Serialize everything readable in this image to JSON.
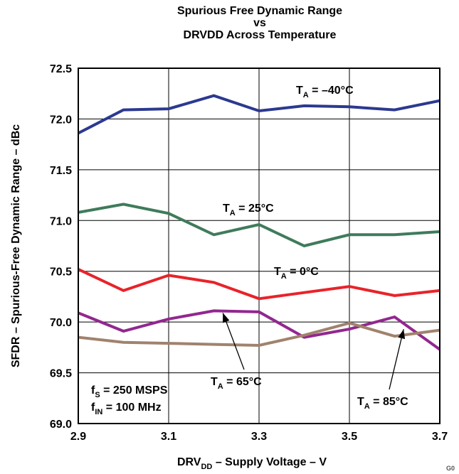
{
  "chart_data": {
    "type": "line",
    "title": [
      "Spurious Free Dynamic Range",
      "vs",
      "DRVDD Across Temperature"
    ],
    "xlabel": {
      "pre": "DRV",
      "sub": "DD",
      "post": " – Supply Voltage – V"
    },
    "ylabel": "SFDR – Spurious-Free Dynamic Range – dBc",
    "xlim": [
      2.9,
      3.7
    ],
    "ylim": [
      69.0,
      72.5
    ],
    "xticks": [
      "2.9",
      "3.1",
      "3.3",
      "3.5",
      "3.7"
    ],
    "xticks_values": [
      2.9,
      3.1,
      3.3,
      3.5,
      3.7
    ],
    "yticks": [
      "69.0",
      "69.5",
      "70.0",
      "70.5",
      "71.0",
      "71.5",
      "72.0",
      "72.5"
    ],
    "yticks_values": [
      69.0,
      69.5,
      70.0,
      70.5,
      71.0,
      71.5,
      72.0,
      72.5
    ],
    "grid": true,
    "x": [
      2.9,
      3.0,
      3.1,
      3.2,
      3.3,
      3.4,
      3.5,
      3.6,
      3.7
    ],
    "series": [
      {
        "name": {
          "pre": "T",
          "sub": "A",
          "post": " = –40°C"
        },
        "color": "#2b3990",
        "values": [
          71.86,
          72.09,
          72.1,
          72.23,
          72.08,
          72.13,
          72.12,
          72.09,
          72.18
        ]
      },
      {
        "name": {
          "pre": "T",
          "sub": "A",
          "post": " = 25°C"
        },
        "color": "#3f7b5b",
        "values": [
          71.08,
          71.16,
          71.07,
          70.86,
          70.96,
          70.75,
          70.86,
          70.86,
          70.89
        ]
      },
      {
        "name": {
          "pre": "T",
          "sub": "A",
          "post": " = 0°C"
        },
        "color": "#e8232a",
        "values": [
          70.52,
          70.31,
          70.46,
          70.39,
          70.23,
          70.29,
          70.35,
          70.26,
          70.31
        ]
      },
      {
        "name": {
          "pre": "T",
          "sub": "A",
          "post": " = 65°C"
        },
        "color": "#92278f",
        "values": [
          70.09,
          69.91,
          70.03,
          70.11,
          70.1,
          69.85,
          69.93,
          70.05,
          69.73
        ]
      },
      {
        "name": {
          "pre": "T",
          "sub": "A",
          "post": " = 85°C"
        },
        "color": "#a0826d",
        "values": [
          69.85,
          69.8,
          69.79,
          69.78,
          69.77,
          69.87,
          69.99,
          69.86,
          69.92
        ]
      }
    ],
    "annotations": [
      {
        "pre": "f",
        "sub": "S",
        "post": " = 250 MSPS"
      },
      {
        "pre": "f",
        "sub": "IN",
        "post": " = 100 MHz"
      }
    ],
    "corner_code": "G0"
  }
}
